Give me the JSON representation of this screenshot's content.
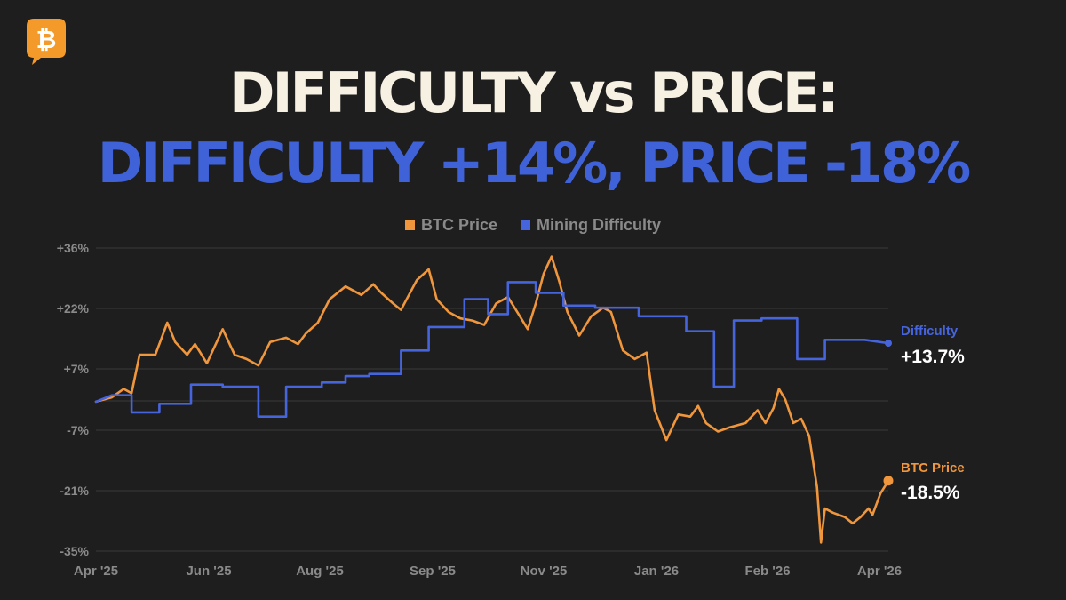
{
  "title_line1": "DIFFICULTY vs PRICE:",
  "title_line2": "DIFFICULTY +14%, PRICE -18%",
  "logo_icon": "bitcoin-icon",
  "colors": {
    "background": "#1e1e1e",
    "title": "#f7f1e3",
    "accent_blue": "#4664dc",
    "accent_orange": "#f0963c",
    "grid": "#3a3a3a",
    "axis_text": "#8a8a8a"
  },
  "legend": [
    {
      "label": "BTC Price",
      "color": "#f0963c"
    },
    {
      "label": "Mining Difficulty",
      "color": "#4664dc"
    }
  ],
  "end_labels": {
    "difficulty_name": "Difficulty",
    "difficulty_value": "+13.7%",
    "price_name": "BTC Price",
    "price_value": "-18.5%"
  },
  "chart_data": {
    "type": "line",
    "title": "",
    "xlabel": "",
    "ylabel": "",
    "x_ticks": [
      "Apr '25",
      "Jun '25",
      "Aug '25",
      "Sep '25",
      "Nov '25",
      "Jan '26",
      "Feb '26",
      "Apr '26"
    ],
    "y_ticks": [
      "+36%",
      "+22%",
      "+7%",
      "-7%",
      "-21%",
      "-35%"
    ],
    "y_tick_values": [
      36,
      22,
      7,
      -7,
      -21,
      -35
    ],
    "ylim": [
      -35,
      36
    ],
    "xlim": [
      0,
      1
    ],
    "grid": true,
    "legend_position": "top-center",
    "series": [
      {
        "name": "BTC Price",
        "color": "#f0963c",
        "points": [
          [
            0.0,
            0.0
          ],
          [
            0.02,
            1.0
          ],
          [
            0.035,
            3.0
          ],
          [
            0.045,
            2.0
          ],
          [
            0.055,
            11.0
          ],
          [
            0.075,
            11.0
          ],
          [
            0.09,
            18.5
          ],
          [
            0.1,
            14.0
          ],
          [
            0.115,
            11.0
          ],
          [
            0.125,
            13.5
          ],
          [
            0.14,
            9.0
          ],
          [
            0.16,
            17.0
          ],
          [
            0.175,
            11.0
          ],
          [
            0.19,
            10.0
          ],
          [
            0.205,
            8.5
          ],
          [
            0.22,
            14.0
          ],
          [
            0.24,
            15.0
          ],
          [
            0.255,
            13.5
          ],
          [
            0.265,
            16.0
          ],
          [
            0.28,
            18.5
          ],
          [
            0.295,
            24.0
          ],
          [
            0.315,
            27.0
          ],
          [
            0.335,
            25.0
          ],
          [
            0.35,
            27.5
          ],
          [
            0.36,
            25.5
          ],
          [
            0.375,
            23.0
          ],
          [
            0.385,
            21.5
          ],
          [
            0.395,
            25.0
          ],
          [
            0.405,
            28.5
          ],
          [
            0.42,
            31.0
          ],
          [
            0.43,
            24.0
          ],
          [
            0.445,
            21.0
          ],
          [
            0.46,
            19.5
          ],
          [
            0.475,
            19.0
          ],
          [
            0.49,
            18.0
          ],
          [
            0.505,
            23.0
          ],
          [
            0.52,
            24.5
          ],
          [
            0.535,
            20.0
          ],
          [
            0.545,
            17.0
          ],
          [
            0.555,
            23.0
          ],
          [
            0.565,
            30.0
          ],
          [
            0.575,
            34.0
          ],
          [
            0.585,
            28.0
          ],
          [
            0.595,
            21.0
          ],
          [
            0.61,
            15.5
          ],
          [
            0.625,
            20.0
          ],
          [
            0.64,
            22.0
          ],
          [
            0.65,
            21.0
          ],
          [
            0.665,
            12.0
          ],
          [
            0.68,
            10.0
          ],
          [
            0.695,
            11.5
          ],
          [
            0.705,
            -2.0
          ],
          [
            0.72,
            -9.0
          ],
          [
            0.735,
            -3.0
          ],
          [
            0.75,
            -3.5
          ],
          [
            0.76,
            -1.0
          ],
          [
            0.77,
            -5.0
          ],
          [
            0.785,
            -7.0
          ],
          [
            0.8,
            -6.0
          ],
          [
            0.82,
            -5.0
          ],
          [
            0.835,
            -2.0
          ],
          [
            0.845,
            -5.0
          ],
          [
            0.855,
            -1.5
          ],
          [
            0.862,
            3.0
          ],
          [
            0.87,
            0.5
          ],
          [
            0.88,
            -5.0
          ],
          [
            0.89,
            -4.0
          ],
          [
            0.9,
            -8.0
          ],
          [
            0.91,
            -20.0
          ],
          [
            0.915,
            -33.0
          ],
          [
            0.92,
            -25.0
          ],
          [
            0.93,
            -26.0
          ],
          [
            0.945,
            -27.0
          ],
          [
            0.955,
            -28.5
          ],
          [
            0.965,
            -27.0
          ],
          [
            0.975,
            -25.0
          ],
          [
            0.98,
            -26.5
          ],
          [
            0.99,
            -21.5
          ],
          [
            1.0,
            -18.5
          ]
        ]
      },
      {
        "name": "Mining Difficulty",
        "color": "#4664dc",
        "points": [
          [
            0.0,
            0.0
          ],
          [
            0.02,
            1.5
          ],
          [
            0.045,
            1.5
          ],
          [
            0.045,
            -2.5
          ],
          [
            0.08,
            -2.5
          ],
          [
            0.08,
            -0.5
          ],
          [
            0.12,
            -0.5
          ],
          [
            0.12,
            4.0
          ],
          [
            0.16,
            4.0
          ],
          [
            0.16,
            3.5
          ],
          [
            0.205,
            3.5
          ],
          [
            0.205,
            -3.5
          ],
          [
            0.24,
            -3.5
          ],
          [
            0.24,
            3.5
          ],
          [
            0.285,
            3.5
          ],
          [
            0.285,
            4.5
          ],
          [
            0.315,
            4.5
          ],
          [
            0.315,
            6.0
          ],
          [
            0.345,
            6.0
          ],
          [
            0.345,
            6.5
          ],
          [
            0.385,
            6.5
          ],
          [
            0.385,
            12.0
          ],
          [
            0.42,
            12.0
          ],
          [
            0.42,
            17.5
          ],
          [
            0.465,
            17.5
          ],
          [
            0.465,
            24.0
          ],
          [
            0.495,
            24.0
          ],
          [
            0.495,
            20.5
          ],
          [
            0.52,
            20.5
          ],
          [
            0.52,
            28.0
          ],
          [
            0.555,
            28.0
          ],
          [
            0.555,
            25.5
          ],
          [
            0.59,
            25.5
          ],
          [
            0.59,
            22.5
          ],
          [
            0.63,
            22.5
          ],
          [
            0.63,
            22.0
          ],
          [
            0.685,
            22.0
          ],
          [
            0.685,
            20.0
          ],
          [
            0.745,
            20.0
          ],
          [
            0.745,
            16.5
          ],
          [
            0.78,
            16.5
          ],
          [
            0.78,
            3.5
          ],
          [
            0.805,
            3.5
          ],
          [
            0.805,
            19.0
          ],
          [
            0.84,
            19.0
          ],
          [
            0.84,
            19.5
          ],
          [
            0.885,
            19.5
          ],
          [
            0.885,
            10.0
          ],
          [
            0.92,
            10.0
          ],
          [
            0.92,
            14.5
          ],
          [
            0.97,
            14.5
          ],
          [
            1.0,
            13.7
          ]
        ]
      }
    ],
    "end_values": {
      "BTC Price": -18.5,
      "Mining Difficulty": 13.7
    }
  }
}
